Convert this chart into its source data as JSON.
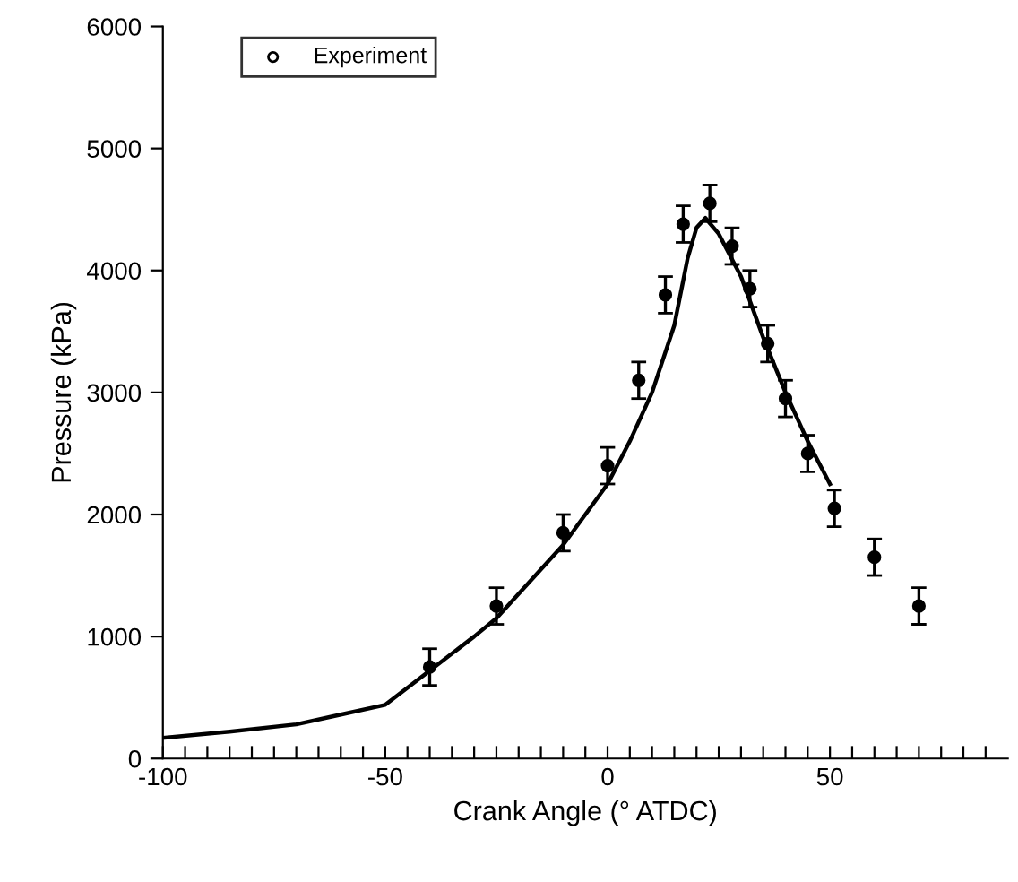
{
  "chart_data": {
    "type": "line",
    "xlabel": "Crank Angle (° ATDC)",
    "ylabel": "Pressure (kPa)",
    "xlim": [
      -100,
      90
    ],
    "ylim": [
      0,
      6000
    ],
    "xticks": [
      -100,
      {
        "value": -95,
        "label": null
      },
      {
        "value": -90,
        "label": null
      },
      {
        "value": -85,
        "label": null
      },
      {
        "value": -80,
        "label": null
      },
      {
        "value": -75,
        "label": null
      },
      {
        "value": -70,
        "label": null
      },
      {
        "value": -65,
        "label": null
      },
      {
        "value": -60,
        "label": null
      },
      {
        "value": -55,
        "label": null
      },
      -50,
      {
        "value": -45,
        "label": null
      },
      {
        "value": -40,
        "label": null
      },
      {
        "value": -35,
        "label": null
      },
      {
        "value": -30,
        "label": null
      },
      {
        "value": -25,
        "label": null
      },
      {
        "value": -20,
        "label": null
      },
      {
        "value": -15,
        "label": null
      },
      {
        "value": -10,
        "label": null
      },
      {
        "value": -5,
        "label": null
      },
      0,
      {
        "value": 5,
        "label": null
      },
      {
        "value": 10,
        "label": null
      },
      {
        "value": 15,
        "label": null
      },
      {
        "value": 20,
        "label": null
      },
      {
        "value": 25,
        "label": null
      },
      {
        "value": 30,
        "label": null
      },
      {
        "value": 35,
        "label": null
      },
      {
        "value": 40,
        "label": null
      },
      {
        "value": 45,
        "label": null
      },
      50,
      {
        "value": 55,
        "label": null
      },
      {
        "value": 60,
        "label": null
      },
      {
        "value": 65,
        "label": null
      },
      {
        "value": 70,
        "label": null
      },
      {
        "value": 75,
        "label": null
      },
      {
        "value": 80,
        "label": null
      },
      {
        "value": 85,
        "label": null
      }
    ],
    "yticks": [
      0,
      1000,
      2000,
      3000,
      4000,
      5000,
      6000
    ],
    "grid": false,
    "legend": "top left",
    "series": [
      {
        "color": "#000000",
        "marker": "none",
        "line_style": "solid",
        "x": [
          -100,
          -85,
          -70,
          -60,
          -50,
          -40,
          -30,
          -25,
          -20,
          -10,
          0,
          5,
          10,
          15,
          18,
          20,
          22,
          25,
          30,
          35,
          40,
          45,
          50
        ],
        "values": [
          170,
          220,
          280,
          360,
          440,
          720,
          1000,
          1150,
          1350,
          1750,
          2250,
          2600,
          3000,
          3550,
          4100,
          4350,
          4430,
          4300,
          3950,
          3450,
          3000,
          2600,
          2250
        ]
      },
      {
        "type": "scatter",
        "name": "Experiment",
        "color": "#000000",
        "marker": "circle",
        "x": [
          -40,
          -25,
          -10,
          0,
          7,
          13,
          17,
          23,
          28,
          32,
          36,
          40,
          45,
          51,
          60,
          70
        ],
        "values": [
          750,
          1250,
          1850,
          2400,
          3100,
          3800,
          4380,
          4550,
          4200,
          3850,
          3400,
          2950,
          2500,
          2050,
          1650,
          1250
        ],
        "errors": [
          150,
          150,
          150,
          150,
          150,
          150,
          150,
          150,
          150,
          150,
          150,
          150,
          150,
          150,
          150,
          150
        ]
      }
    ]
  }
}
